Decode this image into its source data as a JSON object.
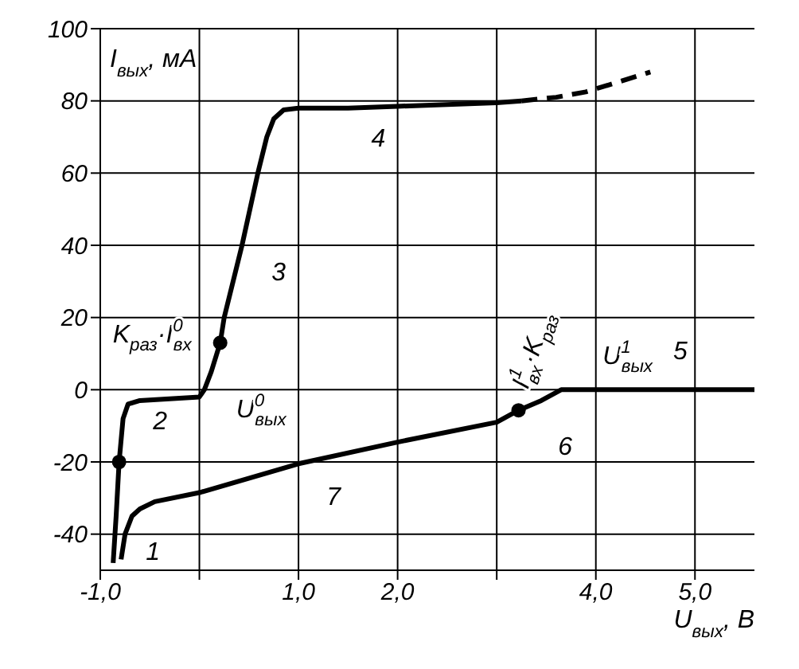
{
  "chart_data": {
    "type": "line",
    "xlabel": "U$_{вых}$, В",
    "ylabel": "I$_{вых}$, мА",
    "xlim": [
      -1,
      5.6
    ],
    "ylim": [
      -50,
      100
    ],
    "xticks": [
      {
        "value": -1,
        "label": "-1,0"
      },
      {
        "value": 0,
        "label": null
      },
      {
        "value": 1,
        "label": "1,0"
      },
      {
        "value": 2,
        "label": "2,0"
      },
      {
        "value": 3,
        "label": null
      },
      {
        "value": 4,
        "label": "4,0"
      },
      {
        "value": 5,
        "label": "5,0"
      }
    ],
    "yticks": [
      -40,
      -20,
      0,
      20,
      40,
      60,
      80,
      100
    ],
    "grid": true,
    "marker": "none",
    "series": [
      {
        "color": "#000000",
        "line_style": "solid",
        "x": [
          -0.87,
          -0.84,
          -0.81,
          -0.77,
          -0.72,
          -0.6,
          -0.3,
          0,
          0.05,
          0.12,
          0.21,
          0.25,
          0.43,
          0.59,
          0.68,
          0.75,
          0.85,
          1.0,
          1.5,
          2.0,
          2.5,
          3.0,
          3.25
        ],
        "values": [
          -48,
          -35,
          -20,
          -8,
          -4,
          -3,
          -2.5,
          -2,
          0,
          5,
          13,
          20,
          40,
          60,
          70,
          75,
          77.5,
          78,
          78,
          78.5,
          79,
          79.5,
          80
        ]
      },
      {
        "color": "#000000",
        "line_style": "dashed",
        "x": [
          3.25,
          3.6,
          3.9,
          4.2,
          4.55
        ],
        "values": [
          80,
          81,
          82.5,
          85,
          88
        ]
      },
      {
        "color": "#000000",
        "line_style": "solid",
        "x": [
          -0.79,
          -0.75,
          -0.68,
          -0.6,
          -0.45,
          0,
          1,
          2,
          3,
          3.22,
          3.45,
          3.65,
          4,
          5,
          5.6
        ],
        "values": [
          -47,
          -40,
          -35,
          -33,
          -31,
          -28.5,
          -20.5,
          -14.5,
          -9,
          -5.7,
          -3,
          0,
          0,
          0,
          0
        ]
      },
      {
        "type": "scatter",
        "color": "#000000",
        "marker": "circle",
        "x": [
          -0.81,
          0.21,
          3.22
        ],
        "values": [
          -20,
          13,
          -5.7
        ]
      }
    ],
    "annotations": [
      {
        "text": "1",
        "x": -0.87,
        "y": -48
      },
      {
        "text": "2",
        "x": -0.3,
        "y": -2.5
      },
      {
        "text": "3",
        "x": 0.43,
        "y": 40
      },
      {
        "text": "4",
        "x": 1.5,
        "y": 78
      },
      {
        "text": "5",
        "x": 4.5,
        "y": 0
      },
      {
        "text": "6",
        "x": 3.45,
        "y": -3
      },
      {
        "text": "7",
        "x": 1,
        "y": -20.5
      },
      {
        "text": "K$_{раз}$·I$^{0}$$_{вх}$",
        "x": 0.21,
        "y": 13
      },
      {
        "text": "U$^{0}$$_{вых}$",
        "x": 0.21,
        "y": 13
      },
      {
        "text": "U$^{1}$$_{вых}$",
        "x": 3.65,
        "y": 0
      },
      {
        "text": "I$^{1}$$_{вх}$·K$_{раз}$",
        "x": 3.22,
        "y": -5.7
      }
    ]
  }
}
